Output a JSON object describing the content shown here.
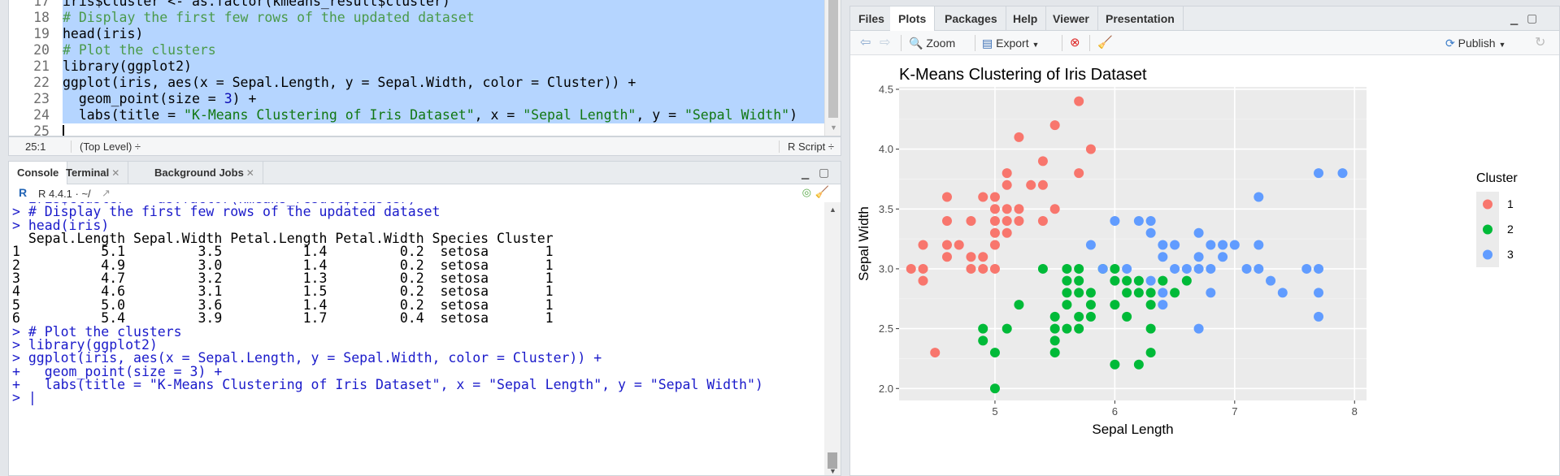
{
  "editor": {
    "lines": [
      {
        "n": "17",
        "text": "iris$Cluster <- as.factor(kmeans_result$cluster)",
        "kind": "code"
      },
      {
        "n": "18",
        "text": "# Display the first few rows of the updated dataset",
        "kind": "comment"
      },
      {
        "n": "19",
        "text": "head(iris)",
        "kind": "code"
      },
      {
        "n": "20",
        "text": "# Plot the clusters",
        "kind": "comment"
      },
      {
        "n": "21",
        "text": "library(ggplot2)",
        "kind": "code"
      },
      {
        "n": "22",
        "text": "ggplot(iris, aes(x = Sepal.Length, y = Sepal.Width, color = Cluster)) +",
        "kind": "code"
      },
      {
        "n": "23",
        "text": "  geom_point(size = 3) +",
        "kind": "code"
      },
      {
        "n": "24",
        "text": "  labs(title = \"K-Means Clustering of Iris Dataset\", x = \"Sepal Length\", y = \"Sepal Width\")",
        "kind": "code"
      },
      {
        "n": "25",
        "text": "",
        "kind": "cursor"
      }
    ],
    "status": {
      "position": "25:1",
      "scope": "(Top Level) ÷",
      "filetype": "R Script ÷"
    }
  },
  "console": {
    "tabs": [
      {
        "label": "Console",
        "closable": false
      },
      {
        "label": "Terminal",
        "closable": true
      },
      {
        "label": "Background Jobs",
        "closable": true
      }
    ],
    "r_version": "R 4.4.1 · ~/",
    "lines": [
      {
        "text": "> iris$Cluster <- as.factor(kmeans_result$cluster)",
        "kind": "cmd"
      },
      {
        "text": "> # Display the first few rows of the updated dataset",
        "kind": "cmd"
      },
      {
        "text": "> head(iris)",
        "kind": "cmd"
      },
      {
        "text": "  Sepal.Length Sepal.Width Petal.Length Petal.Width Species Cluster",
        "kind": "out"
      },
      {
        "text": "1          5.1         3.5          1.4         0.2  setosa       1",
        "kind": "out"
      },
      {
        "text": "2          4.9         3.0          1.4         0.2  setosa       1",
        "kind": "out"
      },
      {
        "text": "3          4.7         3.2          1.3         0.2  setosa       1",
        "kind": "out"
      },
      {
        "text": "4          4.6         3.1          1.5         0.2  setosa       1",
        "kind": "out"
      },
      {
        "text": "5          5.0         3.6          1.4         0.2  setosa       1",
        "kind": "out"
      },
      {
        "text": "6          5.4         3.9          1.7         0.4  setosa       1",
        "kind": "out"
      },
      {
        "text": "> # Plot the clusters",
        "kind": "cmd"
      },
      {
        "text": "> library(ggplot2)",
        "kind": "cmd"
      },
      {
        "text": "> ggplot(iris, aes(x = Sepal.Length, y = Sepal.Width, color = Cluster)) +",
        "kind": "cmd"
      },
      {
        "text": "+   geom_point(size = 3) +",
        "kind": "cmd"
      },
      {
        "text": "+   labs(title = \"K-Means Clustering of Iris Dataset\", x = \"Sepal Length\", y = \"Sepal Width\")",
        "kind": "cmd"
      },
      {
        "text": "> |",
        "kind": "cmd"
      }
    ]
  },
  "plots_pane": {
    "tabs": [
      "Files",
      "Plots",
      "Packages",
      "Help",
      "Viewer",
      "Presentation"
    ],
    "active_tab": "Plots",
    "toolbar": {
      "zoom": "Zoom",
      "export": "Export",
      "publish": "Publish"
    }
  },
  "chart_data": {
    "type": "scatter",
    "title": "K-Means Clustering of Iris Dataset",
    "xlabel": "Sepal Length",
    "ylabel": "Sepal Width",
    "xlim": [
      4.2,
      8.1
    ],
    "ylim": [
      1.9,
      4.52
    ],
    "xticks": [
      5,
      6,
      7,
      8
    ],
    "yticks": [
      2.0,
      2.5,
      3.0,
      3.5,
      4.0,
      4.5
    ],
    "grid": true,
    "legend": {
      "title": "Cluster",
      "placement": "right"
    },
    "series": [
      {
        "name": "1",
        "color": "#F8766D",
        "points": [
          [
            4.3,
            3.0
          ],
          [
            4.4,
            2.9
          ],
          [
            4.4,
            3.0
          ],
          [
            4.4,
            3.2
          ],
          [
            4.5,
            2.3
          ],
          [
            4.6,
            3.1
          ],
          [
            4.6,
            3.2
          ],
          [
            4.6,
            3.4
          ],
          [
            4.6,
            3.6
          ],
          [
            4.7,
            3.2
          ],
          [
            4.8,
            3.0
          ],
          [
            4.8,
            3.1
          ],
          [
            4.8,
            3.4
          ],
          [
            4.9,
            3.0
          ],
          [
            4.9,
            3.1
          ],
          [
            4.9,
            3.6
          ],
          [
            5.0,
            3.0
          ],
          [
            5.0,
            3.2
          ],
          [
            5.0,
            3.3
          ],
          [
            5.0,
            3.4
          ],
          [
            5.0,
            3.5
          ],
          [
            5.0,
            3.6
          ],
          [
            5.1,
            3.3
          ],
          [
            5.1,
            3.4
          ],
          [
            5.1,
            3.5
          ],
          [
            5.1,
            3.7
          ],
          [
            5.1,
            3.8
          ],
          [
            5.2,
            3.4
          ],
          [
            5.2,
            3.5
          ],
          [
            5.2,
            4.1
          ],
          [
            5.3,
            3.7
          ],
          [
            5.4,
            3.4
          ],
          [
            5.4,
            3.7
          ],
          [
            5.4,
            3.9
          ],
          [
            5.5,
            3.5
          ],
          [
            5.5,
            4.2
          ],
          [
            5.7,
            3.8
          ],
          [
            5.7,
            4.4
          ],
          [
            5.8,
            4.0
          ]
        ]
      },
      {
        "name": "2",
        "color": "#00BA38",
        "points": [
          [
            4.9,
            2.4
          ],
          [
            4.9,
            2.5
          ],
          [
            5.0,
            2.0
          ],
          [
            5.0,
            2.3
          ],
          [
            5.1,
            2.5
          ],
          [
            5.2,
            2.7
          ],
          [
            5.4,
            3.0
          ],
          [
            5.5,
            2.3
          ],
          [
            5.5,
            2.4
          ],
          [
            5.5,
            2.5
          ],
          [
            5.5,
            2.6
          ],
          [
            5.6,
            2.5
          ],
          [
            5.6,
            2.7
          ],
          [
            5.6,
            2.8
          ],
          [
            5.6,
            2.9
          ],
          [
            5.6,
            3.0
          ],
          [
            5.7,
            2.5
          ],
          [
            5.7,
            2.6
          ],
          [
            5.7,
            2.8
          ],
          [
            5.7,
            2.9
          ],
          [
            5.7,
            3.0
          ],
          [
            5.8,
            2.6
          ],
          [
            5.8,
            2.7
          ],
          [
            5.8,
            2.8
          ],
          [
            5.9,
            3.0
          ],
          [
            6.0,
            2.2
          ],
          [
            6.0,
            2.7
          ],
          [
            6.0,
            2.9
          ],
          [
            6.0,
            3.0
          ],
          [
            6.1,
            2.6
          ],
          [
            6.1,
            2.8
          ],
          [
            6.1,
            2.9
          ],
          [
            6.2,
            2.2
          ],
          [
            6.2,
            2.8
          ],
          [
            6.2,
            2.9
          ],
          [
            6.3,
            2.3
          ],
          [
            6.3,
            2.5
          ],
          [
            6.3,
            2.7
          ],
          [
            6.3,
            2.8
          ],
          [
            6.4,
            2.9
          ],
          [
            6.5,
            2.8
          ],
          [
            6.6,
            2.9
          ]
        ]
      },
      {
        "name": "3",
        "color": "#619CFF",
        "points": [
          [
            5.8,
            3.2
          ],
          [
            5.9,
            3.0
          ],
          [
            6.0,
            3.4
          ],
          [
            6.1,
            3.0
          ],
          [
            6.2,
            3.4
          ],
          [
            6.3,
            2.9
          ],
          [
            6.3,
            3.3
          ],
          [
            6.3,
            3.4
          ],
          [
            6.4,
            2.7
          ],
          [
            6.4,
            2.8
          ],
          [
            6.4,
            3.1
          ],
          [
            6.4,
            3.2
          ],
          [
            6.5,
            3.0
          ],
          [
            6.5,
            3.2
          ],
          [
            6.6,
            3.0
          ],
          [
            6.7,
            2.5
          ],
          [
            6.7,
            3.0
          ],
          [
            6.7,
            3.1
          ],
          [
            6.7,
            3.3
          ],
          [
            6.8,
            2.8
          ],
          [
            6.8,
            3.0
          ],
          [
            6.8,
            3.2
          ],
          [
            6.9,
            3.1
          ],
          [
            6.9,
            3.2
          ],
          [
            7.0,
            3.2
          ],
          [
            7.1,
            3.0
          ],
          [
            7.2,
            3.0
          ],
          [
            7.2,
            3.2
          ],
          [
            7.2,
            3.6
          ],
          [
            7.3,
            2.9
          ],
          [
            7.4,
            2.8
          ],
          [
            7.6,
            3.0
          ],
          [
            7.7,
            2.6
          ],
          [
            7.7,
            2.8
          ],
          [
            7.7,
            3.0
          ],
          [
            7.7,
            3.8
          ],
          [
            7.9,
            3.8
          ]
        ]
      }
    ]
  }
}
